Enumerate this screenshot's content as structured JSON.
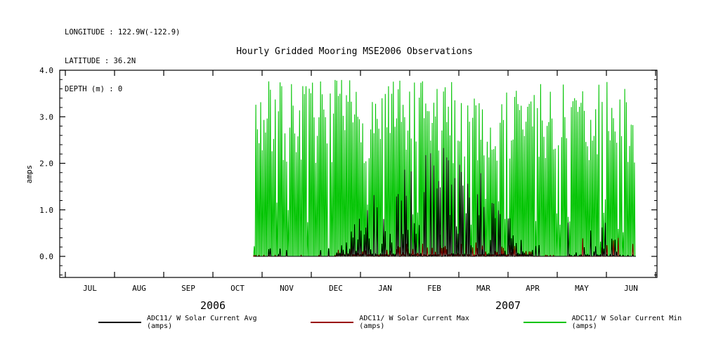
{
  "header": {
    "lines": [
      "LONGITUDE : 122.9W(-122.9)",
      "LATITUDE : 36.2N",
      "DEPTH (m) : 0"
    ]
  },
  "chart_data": {
    "type": "line",
    "title": "Hourly Gridded Mooring MSE2006 Observations",
    "ylabel": "amps",
    "ylim": [
      -0.45,
      4.0
    ],
    "ytick_values": [
      0,
      1,
      2,
      3,
      4
    ],
    "yticks": [
      "0.0",
      "1.0",
      "2.0",
      "3.0",
      "4.0"
    ],
    "months": [
      "JUL",
      "AUG",
      "SEP",
      "OCT",
      "NOV",
      "DEC",
      "JAN",
      "FEB",
      "MAR",
      "APR",
      "MAY",
      "JUN"
    ],
    "years": [
      {
        "label": "2006",
        "center_month": 3
      },
      {
        "label": "2007",
        "center_month": 9
      }
    ],
    "grid": false,
    "legend_position": "bottom",
    "series": [
      {
        "name": "ADC11/ W Solar Current Avg (amps)",
        "color": "#000000"
      },
      {
        "name": "ADC11/ W Solar Current Max (amps)",
        "color": "#990000"
      },
      {
        "name": "ADC11/ W Solar Current Min (amps)",
        "color": "#00c400"
      }
    ],
    "data_span_months": [
      3.84,
      11.6
    ],
    "seed": 7,
    "generation": {
      "note": "daily solar-current spikes from flat 0 baseline; values in amps",
      "min_peak_range": [
        2.0,
        3.8
      ],
      "min_peak_cap": 3.8,
      "cloudy_fraction": 0.13,
      "cloudy_peak": [
        0.15,
        1.25
      ],
      "avg_window_months": [
        5.5,
        9.5
      ],
      "avg_peak_max": 2.4,
      "avg_late_months": [
        10.2,
        11.6
      ],
      "avg_late_peak": 0.85,
      "max_peak_max": 0.3
    }
  }
}
